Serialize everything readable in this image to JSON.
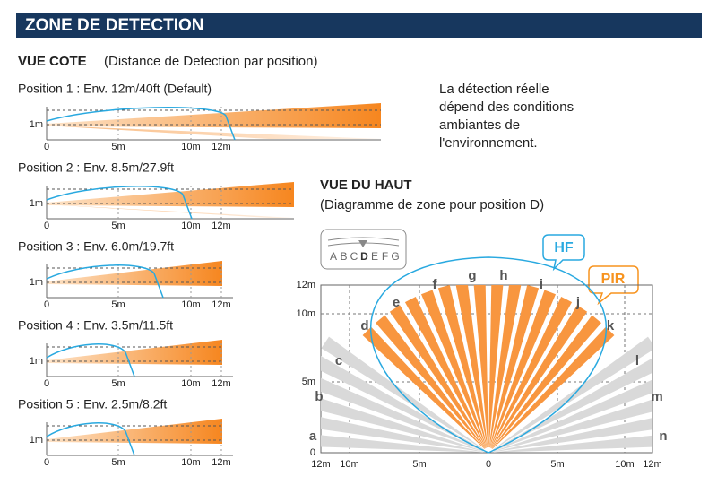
{
  "header": {
    "title": "ZONE DE DETECTION"
  },
  "side_view": {
    "title": "VUE COTE",
    "subtitle": "(Distance de Detection par position)",
    "y_label": "1m",
    "x_labels": [
      "0",
      "5m",
      "10m",
      "12m"
    ],
    "positions": [
      "Position 1 : Env. 12m/40ft (Default)",
      "Position 2 : Env. 8.5m/27.9ft",
      "Position 3 : Env. 6.0m/19.7ft",
      "Position 4 : Env. 3.5m/11.5ft",
      "Position 5 : Env. 2.5m/8.2ft"
    ]
  },
  "note": {
    "lines": [
      "La détection réelle",
      "dépend des conditions",
      "ambiantes  de",
      "l'environnement."
    ]
  },
  "top_view": {
    "title": "VUE DU HAUT",
    "subtitle": "(Diagramme de zone pour position D)",
    "selector_letters": [
      "A",
      "B",
      "C",
      "D",
      "E",
      "F",
      "G"
    ],
    "callouts": {
      "hf": "HF",
      "pir": "PIR"
    },
    "zones": [
      "a",
      "b",
      "c",
      "d",
      "e",
      "f",
      "g",
      "h",
      "i",
      "j",
      "k",
      "l",
      "m",
      "n"
    ],
    "y_labels": [
      "12m",
      "10m",
      "5m",
      "0"
    ],
    "x_labels": [
      "12m",
      "10m",
      "5m",
      "0",
      "5m",
      "10m",
      "12m"
    ]
  }
}
